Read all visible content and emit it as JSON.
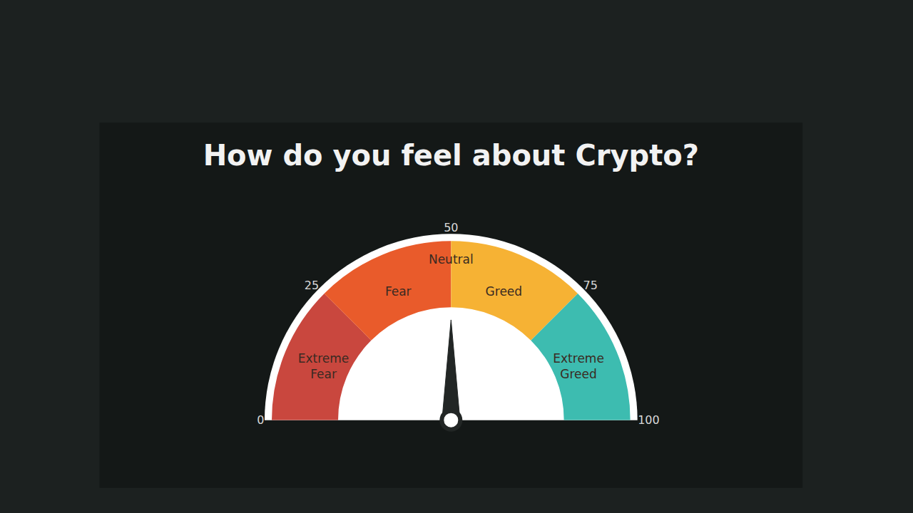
{
  "chart_data": {
    "type": "gauge",
    "title": "How do you feel about Crypto?",
    "value": 50,
    "range": [
      0,
      100
    ],
    "ticks": [
      0,
      25,
      50,
      75,
      100
    ],
    "bands": [
      {
        "name": "Extreme Fear",
        "from": 0,
        "to": 25,
        "color": "#c9473e"
      },
      {
        "name": "Fear",
        "from": 25,
        "to": 50,
        "color": "#e95b2b"
      },
      {
        "name": "Greed",
        "from": 50,
        "to": 75,
        "color": "#f6b234"
      },
      {
        "name": "Extreme Greed",
        "from": 75,
        "to": 100,
        "color": "#3dbcb0"
      }
    ],
    "annotations": [
      {
        "text": "Neutral",
        "value": 50
      }
    ]
  }
}
